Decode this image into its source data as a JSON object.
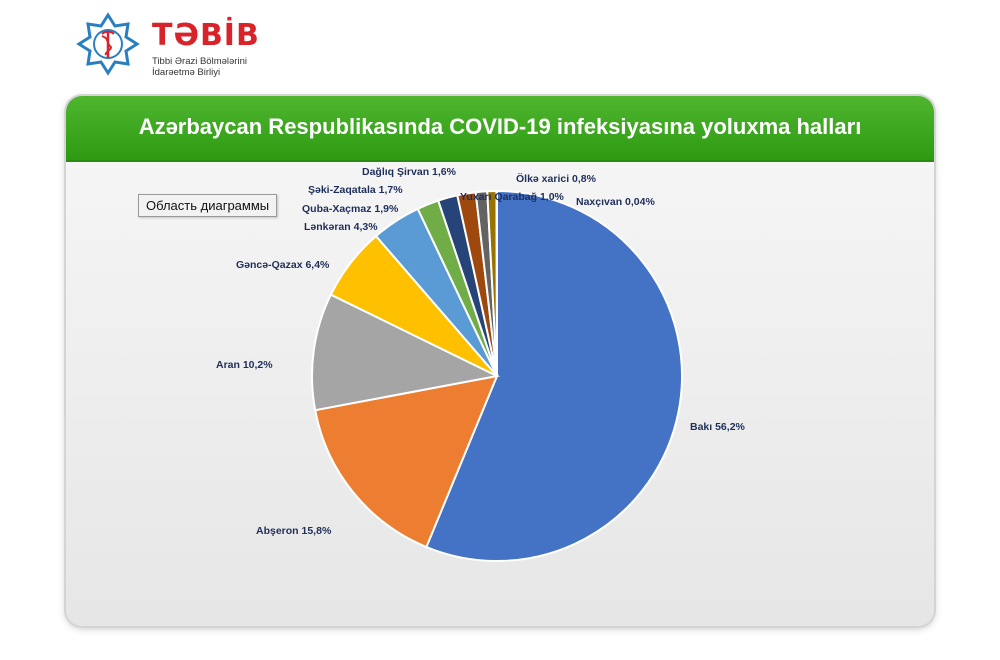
{
  "logo": {
    "name": "TƏBİB",
    "subtitle": "Tibbi Ərazi Bölmələrini İdarəetmə Birliyi",
    "icon": "medical-star-caduceus-icon",
    "brand_color": "#d8232a"
  },
  "chart_tooltip": "Область диаграммы",
  "chart_data": {
    "type": "pie",
    "title": "Azərbaycan Respublikasında COVID-19 infeksiyasına yoluxma halları",
    "start_angle_deg": 0,
    "direction": "clockwise",
    "slices": [
      {
        "label": "Bakı",
        "value": 56.2,
        "display": "Bakı  56,2%",
        "color": "#4472c4"
      },
      {
        "label": "Abşeron",
        "value": 15.8,
        "display": "Abşeron 15,8%",
        "color": "#ed7d31"
      },
      {
        "label": "Aran",
        "value": 10.2,
        "display": "Aran 10,2%",
        "color": "#a5a5a5"
      },
      {
        "label": "Gəncə-Qazax",
        "value": 6.4,
        "display": "Gəncə-Qazax 6,4%",
        "color": "#ffc000"
      },
      {
        "label": "Lənkəran",
        "value": 4.3,
        "display": "Lənkəran 4,3%",
        "color": "#5b9bd5"
      },
      {
        "label": "Quba-Xaçmaz",
        "value": 1.9,
        "display": "Quba-Xaçmaz 1,9%",
        "color": "#70ad47"
      },
      {
        "label": "Şəki-Zaqatala",
        "value": 1.7,
        "display": "Şəki-Zaqatala 1,7%",
        "color": "#264478"
      },
      {
        "label": "Dağlıq Şirvan",
        "value": 1.6,
        "display": "Dağlıq Şirvan 1,6%",
        "color": "#9e480e"
      },
      {
        "label": "Yuxarı Qarabağ",
        "value": 1.0,
        "display": "Yuxarı Qarabağ 1,0%",
        "color": "#636363"
      },
      {
        "label": "Ölkə xarici",
        "value": 0.8,
        "display": "Ölkə xarici 0,8%",
        "color": "#997300"
      },
      {
        "label": "Naxçıvan",
        "value": 0.04,
        "display": "Naxçıvan 0,04%",
        "color": "#255e91"
      }
    ]
  }
}
